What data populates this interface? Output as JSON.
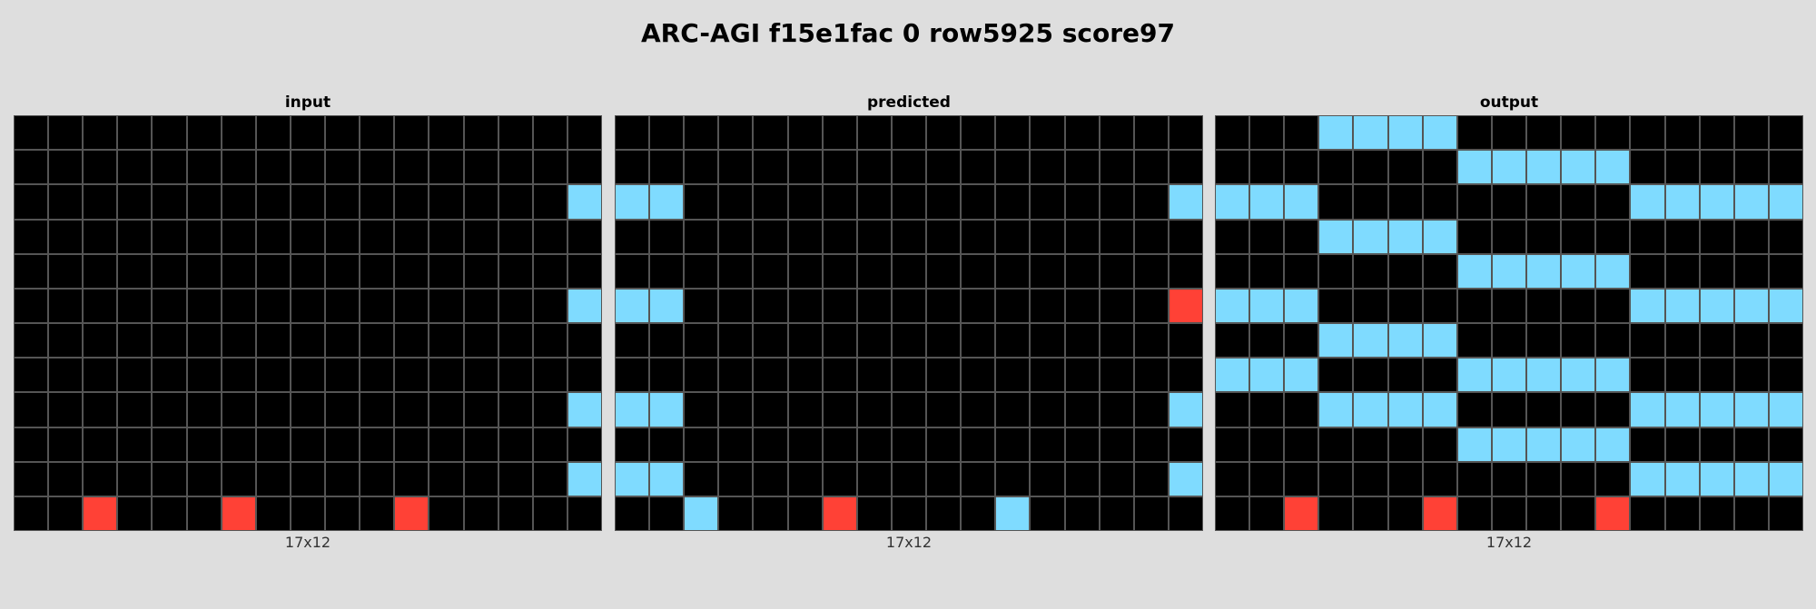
{
  "title": "ARC-AGI f15e1fac 0 row5925 score97",
  "palette": {
    "0": "#000000",
    "2": "#ff4136",
    "8": "#7fdbff"
  },
  "panels": [
    {
      "label": "input",
      "dims": "17x12",
      "grid": [
        [
          0,
          0,
          0,
          0,
          0,
          0,
          0,
          0,
          0,
          0,
          0,
          0,
          0,
          0,
          0,
          0,
          0
        ],
        [
          0,
          0,
          0,
          0,
          0,
          0,
          0,
          0,
          0,
          0,
          0,
          0,
          0,
          0,
          0,
          0,
          0
        ],
        [
          0,
          0,
          0,
          0,
          0,
          0,
          0,
          0,
          0,
          0,
          0,
          0,
          0,
          0,
          0,
          0,
          8
        ],
        [
          0,
          0,
          0,
          0,
          0,
          0,
          0,
          0,
          0,
          0,
          0,
          0,
          0,
          0,
          0,
          0,
          0
        ],
        [
          0,
          0,
          0,
          0,
          0,
          0,
          0,
          0,
          0,
          0,
          0,
          0,
          0,
          0,
          0,
          0,
          0
        ],
        [
          0,
          0,
          0,
          0,
          0,
          0,
          0,
          0,
          0,
          0,
          0,
          0,
          0,
          0,
          0,
          0,
          8
        ],
        [
          0,
          0,
          0,
          0,
          0,
          0,
          0,
          0,
          0,
          0,
          0,
          0,
          0,
          0,
          0,
          0,
          0
        ],
        [
          0,
          0,
          0,
          0,
          0,
          0,
          0,
          0,
          0,
          0,
          0,
          0,
          0,
          0,
          0,
          0,
          0
        ],
        [
          0,
          0,
          0,
          0,
          0,
          0,
          0,
          0,
          0,
          0,
          0,
          0,
          0,
          0,
          0,
          0,
          8
        ],
        [
          0,
          0,
          0,
          0,
          0,
          0,
          0,
          0,
          0,
          0,
          0,
          0,
          0,
          0,
          0,
          0,
          0
        ],
        [
          0,
          0,
          0,
          0,
          0,
          0,
          0,
          0,
          0,
          0,
          0,
          0,
          0,
          0,
          0,
          0,
          8
        ],
        [
          0,
          0,
          2,
          0,
          0,
          0,
          2,
          0,
          0,
          0,
          0,
          2,
          0,
          0,
          0,
          0,
          0
        ]
      ]
    },
    {
      "label": "predicted",
      "dims": "17x12",
      "grid": [
        [
          0,
          0,
          0,
          0,
          0,
          0,
          0,
          0,
          0,
          0,
          0,
          0,
          0,
          0,
          0,
          0,
          0
        ],
        [
          0,
          0,
          0,
          0,
          0,
          0,
          0,
          0,
          0,
          0,
          0,
          0,
          0,
          0,
          0,
          0,
          0
        ],
        [
          8,
          8,
          0,
          0,
          0,
          0,
          0,
          0,
          0,
          0,
          0,
          0,
          0,
          0,
          0,
          0,
          8
        ],
        [
          0,
          0,
          0,
          0,
          0,
          0,
          0,
          0,
          0,
          0,
          0,
          0,
          0,
          0,
          0,
          0,
          0
        ],
        [
          0,
          0,
          0,
          0,
          0,
          0,
          0,
          0,
          0,
          0,
          0,
          0,
          0,
          0,
          0,
          0,
          0
        ],
        [
          8,
          8,
          0,
          0,
          0,
          0,
          0,
          0,
          0,
          0,
          0,
          0,
          0,
          0,
          0,
          0,
          2
        ],
        [
          0,
          0,
          0,
          0,
          0,
          0,
          0,
          0,
          0,
          0,
          0,
          0,
          0,
          0,
          0,
          0,
          0
        ],
        [
          0,
          0,
          0,
          0,
          0,
          0,
          0,
          0,
          0,
          0,
          0,
          0,
          0,
          0,
          0,
          0,
          0
        ],
        [
          8,
          8,
          0,
          0,
          0,
          0,
          0,
          0,
          0,
          0,
          0,
          0,
          0,
          0,
          0,
          0,
          8
        ],
        [
          0,
          0,
          0,
          0,
          0,
          0,
          0,
          0,
          0,
          0,
          0,
          0,
          0,
          0,
          0,
          0,
          0
        ],
        [
          8,
          8,
          0,
          0,
          0,
          0,
          0,
          0,
          0,
          0,
          0,
          0,
          0,
          0,
          0,
          0,
          8
        ],
        [
          0,
          0,
          8,
          0,
          0,
          0,
          2,
          0,
          0,
          0,
          0,
          8,
          0,
          0,
          0,
          0,
          0
        ]
      ]
    },
    {
      "label": "output",
      "dims": "17x12",
      "grid": [
        [
          0,
          0,
          0,
          8,
          8,
          8,
          8,
          0,
          0,
          0,
          0,
          0,
          0,
          0,
          0,
          0,
          0
        ],
        [
          0,
          0,
          0,
          0,
          0,
          0,
          0,
          8,
          8,
          8,
          8,
          8,
          0,
          0,
          0,
          0,
          0
        ],
        [
          8,
          8,
          8,
          0,
          0,
          0,
          0,
          0,
          0,
          0,
          0,
          0,
          8,
          8,
          8,
          8,
          8
        ],
        [
          0,
          0,
          0,
          8,
          8,
          8,
          8,
          0,
          0,
          0,
          0,
          0,
          0,
          0,
          0,
          0,
          0
        ],
        [
          0,
          0,
          0,
          0,
          0,
          0,
          0,
          8,
          8,
          8,
          8,
          8,
          0,
          0,
          0,
          0,
          0
        ],
        [
          8,
          8,
          8,
          0,
          0,
          0,
          0,
          0,
          0,
          0,
          0,
          0,
          8,
          8,
          8,
          8,
          8
        ],
        [
          0,
          0,
          0,
          8,
          8,
          8,
          8,
          0,
          0,
          0,
          0,
          0,
          0,
          0,
          0,
          0,
          0
        ],
        [
          8,
          8,
          8,
          0,
          0,
          0,
          0,
          8,
          8,
          8,
          8,
          8,
          0,
          0,
          0,
          0,
          0
        ],
        [
          0,
          0,
          0,
          8,
          8,
          8,
          8,
          0,
          0,
          0,
          0,
          0,
          8,
          8,
          8,
          8,
          8
        ],
        [
          0,
          0,
          0,
          0,
          0,
          0,
          0,
          8,
          8,
          8,
          8,
          8,
          0,
          0,
          0,
          0,
          0
        ],
        [
          0,
          0,
          0,
          0,
          0,
          0,
          0,
          0,
          0,
          0,
          0,
          0,
          8,
          8,
          8,
          8,
          8
        ],
        [
          0,
          0,
          2,
          0,
          0,
          0,
          2,
          0,
          0,
          0,
          0,
          2,
          0,
          0,
          0,
          0,
          0
        ]
      ]
    }
  ]
}
